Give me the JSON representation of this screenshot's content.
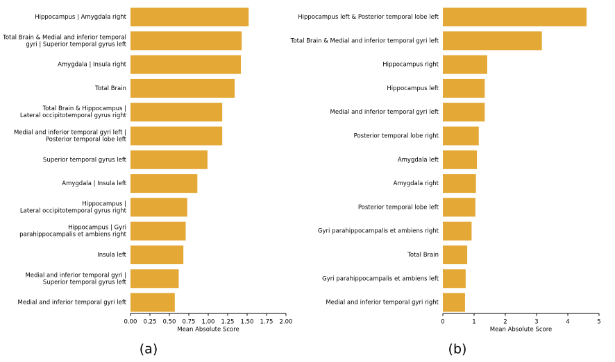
{
  "colors": {
    "bar": "#E3A835",
    "axis": "#000000",
    "text": "#000000"
  },
  "chart_data": [
    {
      "type": "bar",
      "orientation": "horizontal",
      "caption": "(a)",
      "xlabel": "Mean Absolute Score",
      "xlim": [
        0,
        2.0
      ],
      "xticks": [
        0.0,
        0.25,
        0.5,
        0.75,
        1.0,
        1.25,
        1.5,
        1.75,
        2.0
      ],
      "xtick_labels": [
        "0.00",
        "0.25",
        "0.50",
        "0.75",
        "1.00",
        "1.25",
        "1.50",
        "1.75",
        "2.00"
      ],
      "categories": [
        [
          "Hippocampus | Amygdala right"
        ],
        [
          "Total Brain & Medial and inferior temporal",
          "gyri | Superior temporal gyrus left"
        ],
        [
          "Amygdala | Insula right"
        ],
        [
          "Total Brain"
        ],
        [
          "Total Brain & Hippocampus |",
          "Lateral occipitotemporal gyrus right"
        ],
        [
          "Medial and inferior temporal gyri left |",
          "Posterior temporal lobe left"
        ],
        [
          "Superior temporal gyrus left"
        ],
        [
          "Amygdala | Insula left"
        ],
        [
          "Hippocampus |",
          "Lateral occipitotemporal gyrus right"
        ],
        [
          "Hippocampus | Gyri",
          "parahippocampalis et ambiens right"
        ],
        [
          "Insula left"
        ],
        [
          "Medial and inferior temporal gyri |",
          "Superior temporal gyrus left"
        ],
        [
          "Medial and inferior temporal gyri left"
        ]
      ],
      "values": [
        1.52,
        1.43,
        1.42,
        1.34,
        1.18,
        1.18,
        0.99,
        0.86,
        0.73,
        0.71,
        0.68,
        0.62,
        0.57
      ]
    },
    {
      "type": "bar",
      "orientation": "horizontal",
      "caption": "(b)",
      "xlabel": "Mean Absolute Score",
      "xlim": [
        0,
        5
      ],
      "xticks": [
        0,
        1,
        2,
        3,
        4,
        5
      ],
      "xtick_labels": [
        "0",
        "1",
        "2",
        "3",
        "4",
        "5"
      ],
      "categories": [
        [
          "Hippocampus left & Posterior temporal lobe left"
        ],
        [
          "Total Brain & Medial and inferior temporal gyri left"
        ],
        [
          "Hippocampus right"
        ],
        [
          "Hippocampus left"
        ],
        [
          "Medial and inferior temporal gyri left"
        ],
        [
          "Posterior temporal lobe right"
        ],
        [
          "Amygdala left"
        ],
        [
          "Amygdala right"
        ],
        [
          "Posterior temporal lobe left"
        ],
        [
          "Gyri parahippocampalis et ambiens right"
        ],
        [
          "Total Brain"
        ],
        [
          "Gyri parahippocampalis et ambiens left"
        ],
        [
          "Medial and inferior temporal gyri right"
        ]
      ],
      "values": [
        4.6,
        3.17,
        1.42,
        1.34,
        1.34,
        1.15,
        1.09,
        1.06,
        1.04,
        0.92,
        0.78,
        0.73,
        0.71
      ]
    }
  ]
}
